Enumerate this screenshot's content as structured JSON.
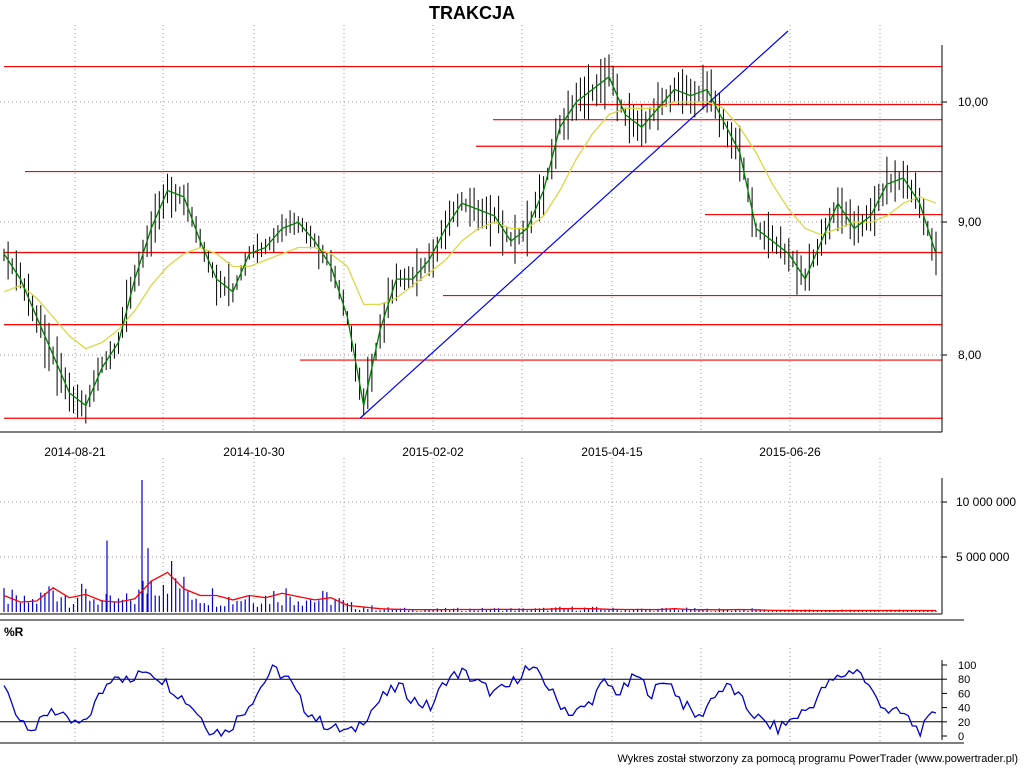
{
  "chart_data": [
    {
      "type": "candlestick",
      "title": "TRAKCJA",
      "x_ticks": [
        "2014-08-21",
        "2014-10-30",
        "2015-02-02",
        "2015-04-15",
        "2015-06-26"
      ],
      "y_ticks": [
        "8,00",
        "9,00",
        "10,00"
      ],
      "ylim": [
        7.45,
        10.45
      ],
      "grid": true,
      "series": [
        {
          "values": [
            8.8,
            8.6,
            8.3,
            8.0,
            7.7,
            7.6,
            7.9,
            8.1,
            8.6,
            9.0,
            9.3,
            9.25,
            8.9,
            8.6,
            8.5,
            8.8,
            8.85,
            9.0,
            9.05,
            8.9,
            8.7,
            8.3,
            7.6,
            8.2,
            8.6,
            8.6,
            8.75,
            9.0,
            9.2,
            9.15,
            9.1,
            8.9,
            9.0,
            9.3,
            9.8,
            10.0,
            10.1,
            10.2,
            9.9,
            9.8,
            9.95,
            10.1,
            10.05,
            10.1,
            9.85,
            9.6,
            9.0,
            8.9,
            8.8,
            8.6,
            8.9,
            9.2,
            9.0,
            9.1,
            9.35,
            9.4,
            9.2,
            8.8
          ]
        },
        {
          "values": [
            8.5,
            8.55,
            8.45,
            8.3,
            8.15,
            8.05,
            8.1,
            8.2,
            8.35,
            8.55,
            8.7,
            8.8,
            8.85,
            8.8,
            8.7,
            8.7,
            8.75,
            8.8,
            8.85,
            8.85,
            8.8,
            8.7,
            8.4,
            8.4,
            8.45,
            8.55,
            8.65,
            8.75,
            8.9,
            9.0,
            9.05,
            9.0,
            9.0,
            9.1,
            9.3,
            9.55,
            9.75,
            9.9,
            9.95,
            9.95,
            9.95,
            10.0,
            10.0,
            10.0,
            9.95,
            9.8,
            9.6,
            9.35,
            9.15,
            9.0,
            8.95,
            9.0,
            9.05,
            9.05,
            9.1,
            9.2,
            9.25,
            9.2
          ]
        }
      ],
      "support_resistance_levels": [
        10.28,
        9.98,
        9.86,
        9.65,
        9.45,
        9.11,
        8.81,
        8.47,
        8.24,
        7.96,
        7.5
      ],
      "trendline": {
        "from": [
          "2014-11-27",
          7.5
        ],
        "to": [
          "2015-06-01",
          10.55
        ]
      },
      "colors": {
        "price": "#000000",
        "fast_ma": "#008000",
        "slow_ma": "#d8d848",
        "levels": "#ff0000",
        "trendline": "#0000ff",
        "grid": "#808080"
      }
    },
    {
      "type": "bar",
      "y_ticks": [
        "5 000 000",
        "10 000 000"
      ],
      "ylim": [
        0,
        12500000
      ],
      "series": [
        {
          "values": [
            1500000,
            900000,
            1000000,
            2200000,
            1300000,
            1600000,
            1000000,
            900000,
            1200000,
            2800000,
            3600000,
            2100000,
            1500000,
            1500000,
            1100000,
            1500000,
            1300000,
            1700000,
            1400000,
            1100000,
            1300000,
            600000,
            450000,
            300000,
            250000,
            220000,
            210000,
            220000,
            230000,
            230000,
            240000,
            240000,
            230000,
            250000,
            300000,
            320000,
            300000,
            250000,
            230000,
            230000,
            220000,
            300000,
            220000,
            210000,
            200000,
            230000,
            200000,
            150000,
            150000,
            140000,
            130000,
            130000,
            140000,
            140000,
            140000,
            140000,
            140000,
            140000
          ]
        }
      ],
      "colors": {
        "bars": "#0000cc",
        "moving_average": "#ff0000"
      }
    },
    {
      "type": "line",
      "title": "%R",
      "y_ticks": [
        "0",
        "20",
        "40",
        "60",
        "80",
        "100"
      ],
      "ylim": [
        0,
        100
      ],
      "series": [
        {
          "values": [
            70,
            25,
            10,
            40,
            20,
            15,
            55,
            90,
            75,
            95,
            80,
            60,
            40,
            10,
            5,
            30,
            60,
            95,
            80,
            40,
            20,
            10,
            5,
            30,
            55,
            70,
            50,
            40,
            80,
            90,
            75,
            60,
            70,
            95,
            85,
            50,
            30,
            45,
            75,
            60,
            85,
            60,
            80,
            45,
            25,
            60,
            70,
            40,
            20,
            10,
            25,
            40,
            70,
            85,
            95,
            60,
            35,
            30,
            5,
            35
          ]
        }
      ],
      "reference_levels": [
        20,
        80
      ],
      "colors": {
        "line": "#0000cc"
      }
    }
  ],
  "footer": {
    "credit": "Wykres został stworzony za pomocą programu PowerTrader (www.powertrader.pl)"
  }
}
